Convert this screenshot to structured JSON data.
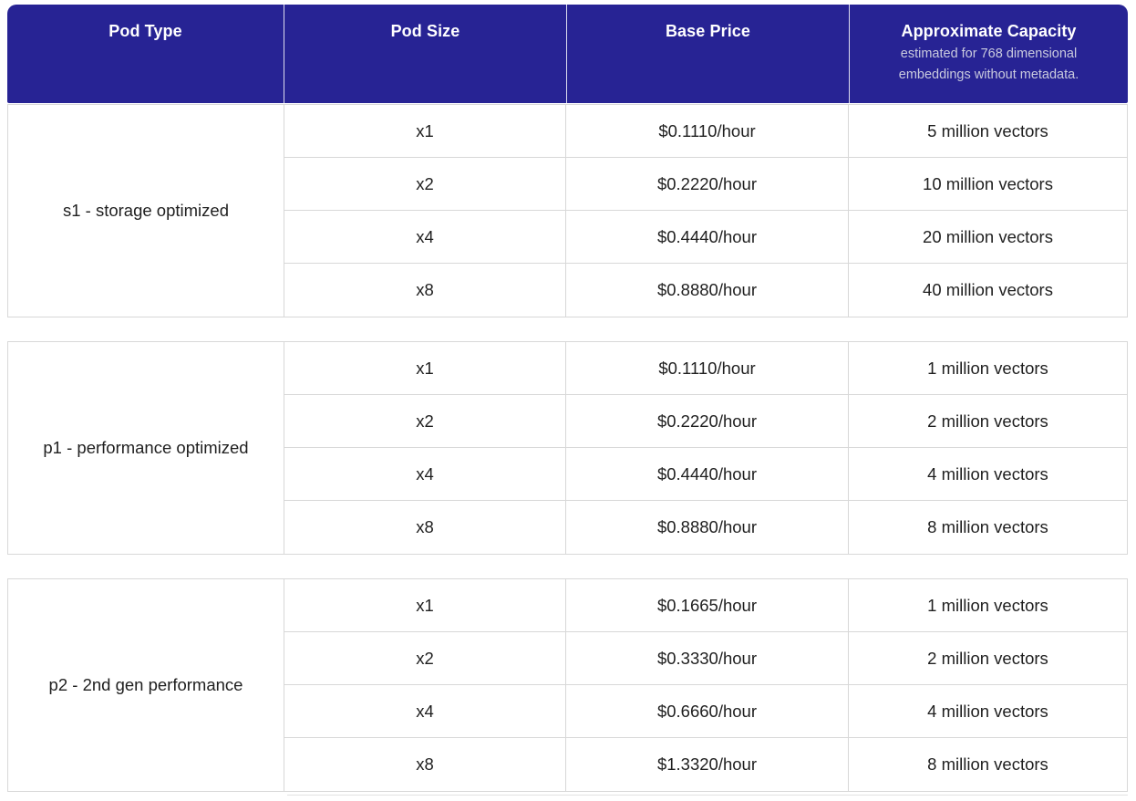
{
  "table": {
    "columns": [
      {
        "label": "Pod Type"
      },
      {
        "label": "Pod Size"
      },
      {
        "label": "Base Price"
      },
      {
        "label": "Approximate Capacity",
        "subtitle": "estimated for 768 dimensional embeddings without metadata."
      }
    ],
    "sections": [
      {
        "pod_type": "s1 - storage optimized",
        "rows": [
          {
            "size": "x1",
            "price": "$0.1110/hour",
            "capacity": "5 million vectors"
          },
          {
            "size": "x2",
            "price": "$0.2220/hour",
            "capacity": "10 million vectors"
          },
          {
            "size": "x4",
            "price": "$0.4440/hour",
            "capacity": "20 million vectors"
          },
          {
            "size": "x8",
            "price": "$0.8880/hour",
            "capacity": "40 million vectors"
          }
        ]
      },
      {
        "pod_type": "p1 - performance optimized",
        "rows": [
          {
            "size": "x1",
            "price": "$0.1110/hour",
            "capacity": "1 million vectors"
          },
          {
            "size": "x2",
            "price": "$0.2220/hour",
            "capacity": "2 million vectors"
          },
          {
            "size": "x4",
            "price": "$0.4440/hour",
            "capacity": "4 million vectors"
          },
          {
            "size": "x8",
            "price": "$0.8880/hour",
            "capacity": "8 million vectors"
          }
        ]
      },
      {
        "pod_type": "p2 - 2nd gen performance",
        "rows": [
          {
            "size": "x1",
            "price": "$0.1665/hour",
            "capacity": "1 million vectors"
          },
          {
            "size": "x2",
            "price": "$0.3330/hour",
            "capacity": "2 million vectors"
          },
          {
            "size": "x4",
            "price": "$0.6660/hour",
            "capacity": "4 million vectors"
          },
          {
            "size": "x8",
            "price": "$1.3320/hour",
            "capacity": "8 million vectors"
          }
        ]
      }
    ]
  },
  "colors": {
    "header_bg": "#272394",
    "header_text": "#ffffff",
    "header_subtitle": "#c9cade",
    "border": "#d8d8d8",
    "body_text": "#1f1f1f"
  }
}
